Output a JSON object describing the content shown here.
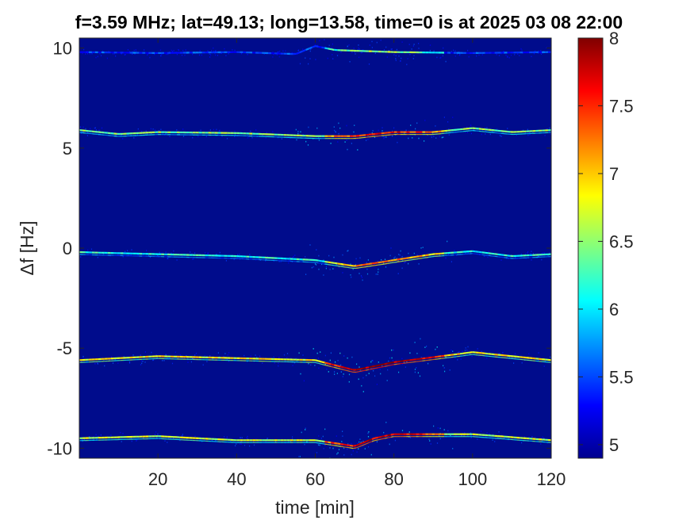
{
  "chart_data": {
    "type": "heatmap",
    "title": "f=3.59 MHz;  lat=49.13; long=13.58, time=0 is at 2025 03 08 22:00",
    "xlabel": "time [min]",
    "ylabel": "Δf [Hz]",
    "xlim": [
      0,
      120
    ],
    "ylim": [
      -10.5,
      10.5
    ],
    "xticks": [
      20,
      40,
      60,
      80,
      100,
      120
    ],
    "yticks": [
      10,
      5,
      0,
      -5,
      -10
    ],
    "colorbar": {
      "colormap": "jet",
      "range": [
        4.9,
        8
      ],
      "ticks": [
        8,
        7.5,
        7,
        6.5,
        6,
        5.5,
        5
      ]
    },
    "traces": [
      {
        "center": 9.8,
        "x": [
          0,
          20,
          40,
          55,
          60,
          65,
          80,
          100,
          120
        ],
        "y": [
          9.8,
          9.75,
          9.8,
          9.7,
          10.1,
          9.9,
          9.8,
          9.75,
          9.8
        ],
        "intensity": 5.6
      },
      {
        "center": 5.8,
        "x": [
          0,
          10,
          20,
          40,
          60,
          70,
          80,
          90,
          100,
          110,
          120
        ],
        "y": [
          5.9,
          5.7,
          5.8,
          5.75,
          5.6,
          5.6,
          5.8,
          5.8,
          6.0,
          5.8,
          5.9
        ],
        "intensity": 6.6
      },
      {
        "center": -0.3,
        "x": [
          0,
          20,
          40,
          60,
          70,
          80,
          90,
          100,
          110,
          120
        ],
        "y": [
          -0.2,
          -0.3,
          -0.4,
          -0.6,
          -0.9,
          -0.6,
          -0.3,
          -0.15,
          -0.4,
          -0.3
        ],
        "intensity": 6.3
      },
      {
        "center": -5.5,
        "x": [
          0,
          20,
          40,
          60,
          70,
          80,
          100,
          120
        ],
        "y": [
          -5.6,
          -5.4,
          -5.5,
          -5.6,
          -6.1,
          -5.7,
          -5.2,
          -5.6
        ],
        "intensity": 7.0
      },
      {
        "center": -9.5,
        "x": [
          0,
          20,
          40,
          60,
          70,
          75,
          80,
          100,
          120
        ],
        "y": [
          -9.5,
          -9.4,
          -9.6,
          -9.6,
          -9.9,
          -9.5,
          -9.3,
          -9.3,
          -9.6
        ],
        "intensity": 6.8
      }
    ]
  }
}
